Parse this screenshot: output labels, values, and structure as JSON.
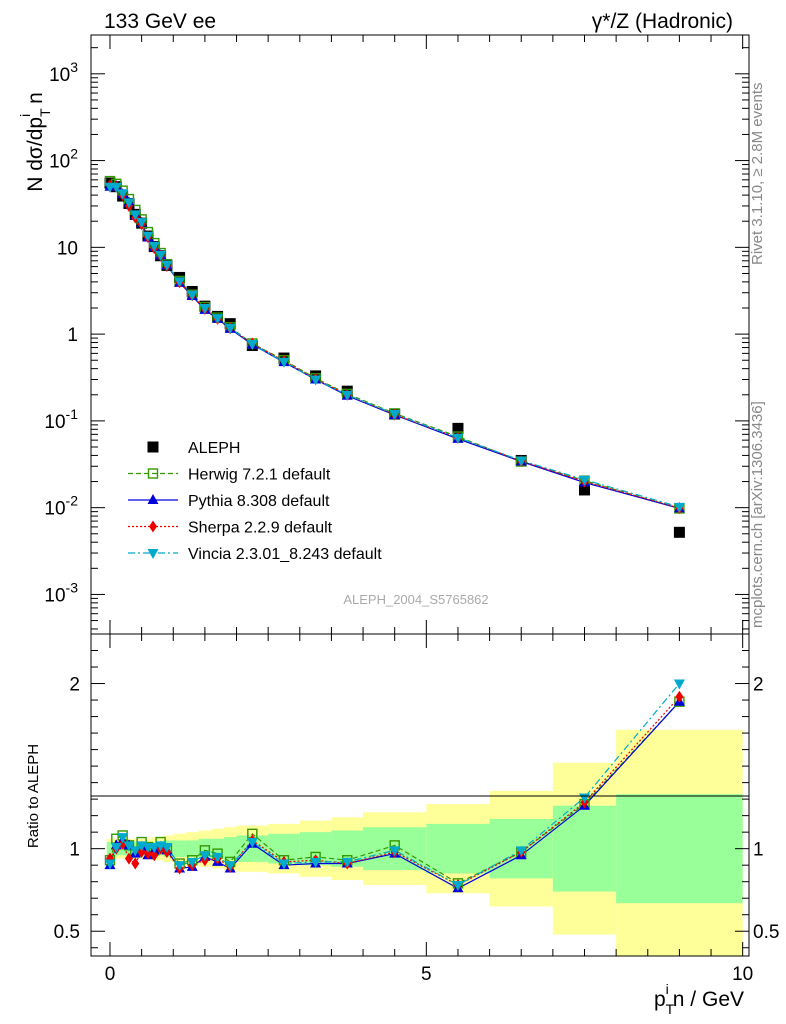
{
  "header": {
    "left": "133 GeV ee",
    "right": "γ*/Z (Hadronic)"
  },
  "side_text": {
    "rivet": "Rivet 3.1.10, ≥ 2.8M events",
    "mcplots": "mcplots.cern.ch [arXiv:1306.3436]"
  },
  "watermark": "ALEPH_2004_S5765862",
  "main_ylabel": "N dσ/dp_T^i n",
  "ratio_ylabel": "Ratio to ALEPH",
  "xlabel": "p_T^i n / GeV",
  "colors": {
    "aleph": "#000000",
    "herwig": "#339900",
    "pythia": "#0000dd",
    "sherpa": "#ee0000",
    "vincia": "#00aacc",
    "band_outer": "#ffff99",
    "band_inner": "#99ff99"
  },
  "chart_data": [
    {
      "type": "scatter",
      "panel": "main",
      "yscale": "log",
      "xlim": [
        -0.3,
        10.1
      ],
      "ylim": [
        0.00035,
        2800
      ],
      "x_ticks": [
        "0",
        "5",
        "10"
      ],
      "y_ticks": [
        "10^-3",
        "10^-2",
        "10^-1",
        "1",
        "10",
        "10^2",
        "10^3"
      ],
      "legend_position": "lower-left",
      "x": [
        0.0,
        0.1,
        0.2,
        0.3,
        0.4,
        0.5,
        0.6,
        0.7,
        0.8,
        0.9,
        1.1,
        1.3,
        1.5,
        1.7,
        1.9,
        2.25,
        2.75,
        3.25,
        3.75,
        4.5,
        5.5,
        6.5,
        7.5,
        9.0
      ],
      "series": [
        {
          "name": "ALEPH",
          "marker": "square",
          "values": [
            55,
            50,
            39,
            32,
            24,
            19,
            13.5,
            10.2,
            8.0,
            6.2,
            4.5,
            3.1,
            2.1,
            1.6,
            1.32,
            0.74,
            0.53,
            0.33,
            0.22,
            0.12,
            0.082,
            0.035,
            0.016,
            0.0052
          ]
        },
        {
          "name": "Herwig 7.2.1 default",
          "marker": "open-square",
          "line": "dashed",
          "values": [
            58,
            54,
            45,
            36,
            27,
            21,
            15,
            11.2,
            8.6,
            6.4,
            4.1,
            2.85,
            2.05,
            1.55,
            1.2,
            0.78,
            0.5,
            0.31,
            0.205,
            0.122,
            0.066,
            0.034,
            0.0205,
            0.0098
          ]
        },
        {
          "name": "Pythia 8.308 default",
          "marker": "triangle-up",
          "line": "solid",
          "values": [
            50,
            51,
            41,
            33,
            23.5,
            19.2,
            13,
            10.1,
            8.1,
            6.2,
            3.9,
            2.75,
            1.9,
            1.5,
            1.15,
            0.76,
            0.475,
            0.3,
            0.195,
            0.117,
            0.062,
            0.034,
            0.0195,
            0.0098
          ]
        },
        {
          "name": "Sherpa 2.2.9 default",
          "marker": "diamond",
          "line": "dotted",
          "values": [
            52,
            50,
            40,
            30,
            22,
            18.5,
            13.1,
            9.8,
            8.0,
            6.1,
            3.95,
            2.8,
            1.95,
            1.5,
            1.17,
            0.78,
            0.49,
            0.305,
            0.2,
            0.118,
            0.064,
            0.0345,
            0.02,
            0.0099
          ]
        },
        {
          "name": "Vincia 2.3.01_8.243 default",
          "marker": "triangle-down",
          "line": "dash-dot",
          "values": [
            50,
            50,
            42,
            33,
            24,
            19.5,
            13.6,
            10.4,
            8.2,
            6.3,
            4.05,
            2.85,
            2.0,
            1.53,
            1.18,
            0.77,
            0.48,
            0.3,
            0.2,
            0.12,
            0.064,
            0.035,
            0.021,
            0.0102
          ]
        }
      ]
    },
    {
      "type": "line",
      "panel": "ratio",
      "xlim": [
        -0.3,
        10.1
      ],
      "ylim": [
        0.35,
        2.3
      ],
      "x_ticks": [
        "0",
        "5",
        "10"
      ],
      "y_ticks": [
        "0.5",
        "1",
        "2"
      ],
      "bands": {
        "edges": [
          -0.05,
          0.05,
          0.15,
          0.25,
          0.35,
          0.45,
          0.55,
          0.65,
          0.75,
          0.85,
          1.0,
          1.2,
          1.4,
          1.6,
          1.8,
          2.0,
          2.5,
          3.0,
          3.5,
          4.0,
          5.0,
          6.0,
          7.0,
          8.0,
          10.0
        ],
        "inner": [
          0.04,
          0.04,
          0.04,
          0.04,
          0.04,
          0.04,
          0.04,
          0.04,
          0.04,
          0.05,
          0.05,
          0.05,
          0.06,
          0.06,
          0.07,
          0.08,
          0.09,
          0.1,
          0.11,
          0.13,
          0.15,
          0.18,
          0.26,
          0.33
        ],
        "outer": [
          0.06,
          0.06,
          0.06,
          0.06,
          0.06,
          0.06,
          0.06,
          0.07,
          0.07,
          0.08,
          0.09,
          0.1,
          0.11,
          0.12,
          0.13,
          0.14,
          0.15,
          0.17,
          0.19,
          0.22,
          0.27,
          0.35,
          0.52,
          0.72
        ]
      },
      "series": [
        {
          "name": "Herwig 7.2.1 default",
          "values": [
            0.93,
            1.06,
            1.08,
            1.02,
            0.98,
            1.04,
            1.01,
            0.99,
            1.04,
            1.0,
            0.91,
            0.93,
            0.99,
            0.97,
            0.92,
            1.09,
            0.93,
            0.95,
            0.93,
            1.02,
            0.79,
            0.98,
            1.27,
            1.89
          ]
        },
        {
          "name": "Pythia 8.308 default",
          "values": [
            0.9,
            1.02,
            1.05,
            1.02,
            0.97,
            1.01,
            0.96,
            0.99,
            1.01,
            0.99,
            0.88,
            0.89,
            0.95,
            0.92,
            0.88,
            1.03,
            0.9,
            0.91,
            0.91,
            0.97,
            0.76,
            0.96,
            1.26,
            1.89
          ]
        },
        {
          "name": "Sherpa 2.2.9 default",
          "values": [
            0.94,
            1.0,
            1.03,
            0.94,
            0.91,
            0.98,
            0.97,
            0.96,
            1.0,
            0.98,
            0.88,
            0.9,
            0.93,
            0.94,
            0.89,
            1.05,
            0.92,
            0.93,
            0.91,
            0.98,
            0.78,
            0.98,
            1.28,
            1.92
          ]
        },
        {
          "name": "Vincia 2.3.01_8.243 default",
          "values": [
            0.91,
            1.01,
            1.07,
            1.02,
            0.99,
            1.02,
            1.01,
            1.01,
            1.02,
            1.01,
            0.9,
            0.92,
            0.96,
            0.95,
            0.9,
            1.04,
            0.91,
            0.92,
            0.92,
            0.99,
            0.78,
            0.99,
            1.31,
            2.0
          ]
        }
      ]
    }
  ]
}
